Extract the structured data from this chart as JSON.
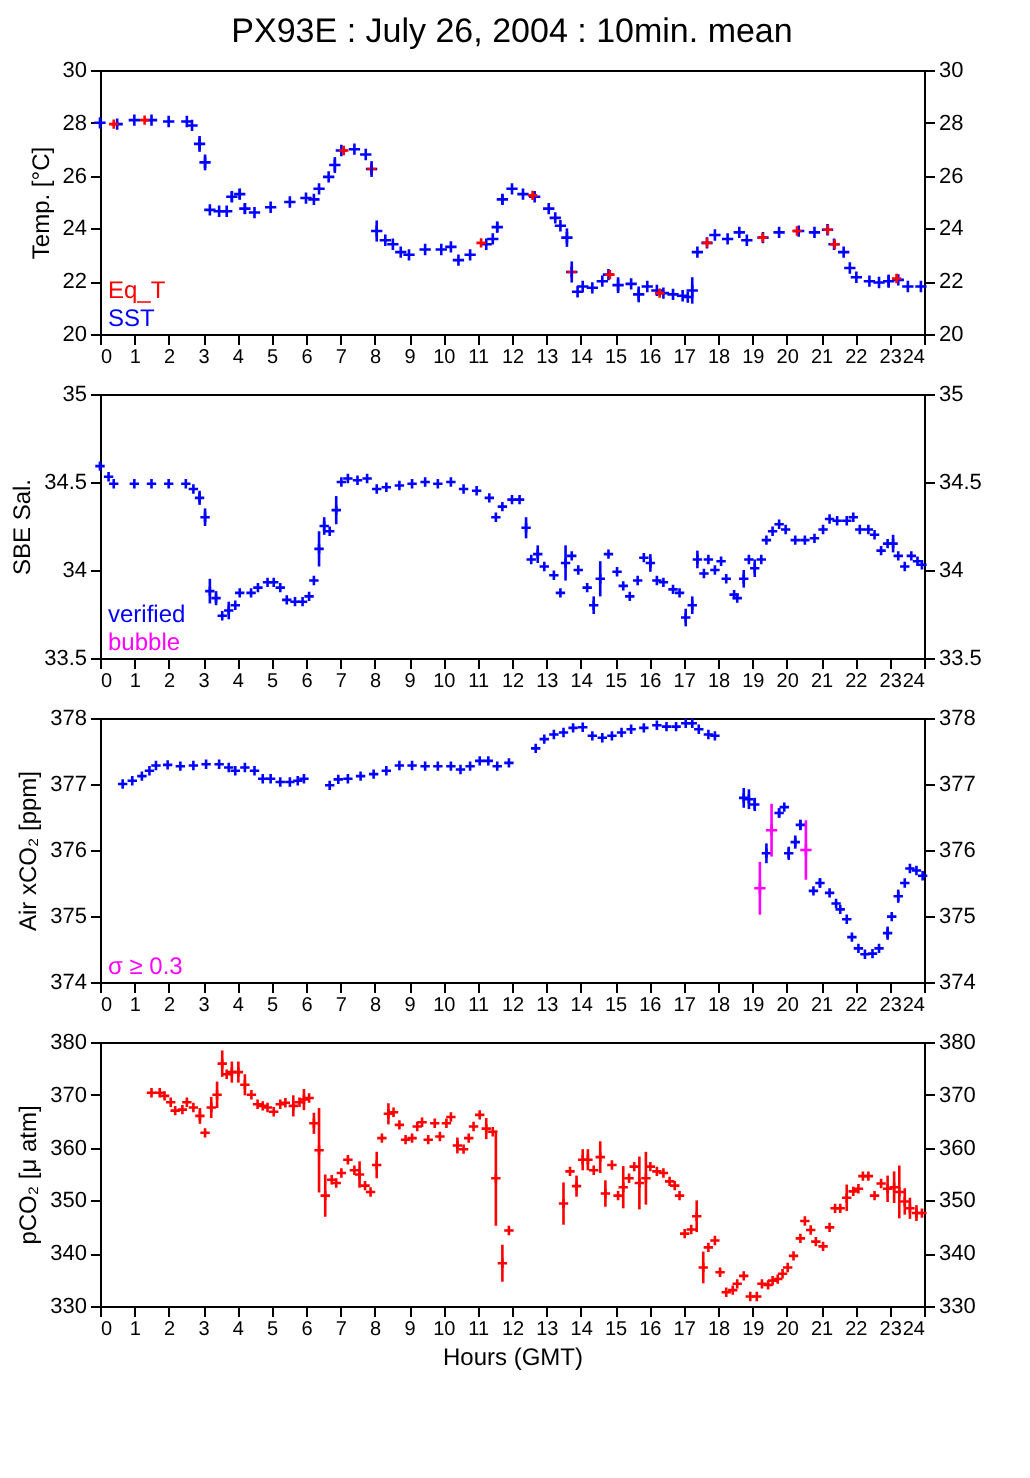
{
  "chart_data": [
    {
      "type": "scatter",
      "title": "PX93E : July 26, 2004 : 10min. mean",
      "ylabel": "Temp. [°C]",
      "xlim": [
        0,
        24
      ],
      "xticks": [
        0,
        1,
        2,
        3,
        4,
        5,
        6,
        7,
        8,
        9,
        10,
        11,
        12,
        13,
        14,
        15,
        16,
        17,
        18,
        19,
        20,
        21,
        22,
        23,
        24
      ],
      "ylim": [
        20,
        30
      ],
      "yticks": [
        20,
        22,
        24,
        26,
        28,
        30
      ],
      "y2lim": [
        20,
        30
      ],
      "y2ticks": [
        20,
        22,
        24,
        26,
        28,
        30
      ],
      "grid": false,
      "marker": "cross",
      "legend": "bottom left",
      "series": [
        {
          "name": "Eq_T",
          "color": "#ff0000",
          "x": [
            0.4,
            1.3,
            7.1,
            7.91,
            11.1,
            12.6,
            13.74,
            14.85,
            16.3,
            17.68,
            19.3,
            20.3,
            21.2,
            21.4,
            23.2
          ],
          "values": [
            27.95,
            28.1,
            26.95,
            26.25,
            23.45,
            25.25,
            22.35,
            22.25,
            21.55,
            23.45,
            23.65,
            23.9,
            23.95,
            23.4,
            22.1
          ],
          "errors": [
            null,
            null,
            null,
            null,
            null,
            null,
            null,
            null,
            null,
            null,
            null,
            null,
            null,
            null,
            null
          ]
        },
        {
          "name": "SST",
          "color": "#0000ff",
          "x": [
            0.0,
            0.5,
            1.0,
            1.5,
            2.0,
            2.53,
            2.68,
            2.9,
            3.06,
            3.2,
            3.47,
            3.69,
            3.84,
            4.07,
            4.22,
            4.5,
            4.97,
            5.53,
            6.0,
            6.23,
            6.38,
            6.66,
            6.84,
            7.03,
            7.41,
            7.74,
            7.91,
            8.06,
            8.31,
            8.53,
            8.76,
            9.0,
            9.47,
            9.94,
            10.22,
            10.44,
            10.78,
            11.25,
            11.44,
            11.57,
            11.72,
            12.0,
            12.32,
            12.66,
            13.07,
            13.26,
            13.41,
            13.6,
            13.74,
            13.91,
            14.06,
            14.34,
            14.63,
            14.81,
            15.09,
            15.47,
            15.69,
            15.94,
            16.22,
            16.41,
            16.69,
            16.97,
            17.12,
            17.25,
            17.4,
            17.68,
            17.91,
            18.28,
            18.62,
            18.84,
            19.31,
            19.78,
            20.35,
            20.81,
            21.19,
            21.38,
            21.66,
            21.84,
            22.03,
            22.41,
            22.69,
            22.97,
            23.25,
            23.53,
            23.91
          ],
          "values": [
            28.0,
            27.95,
            28.1,
            28.1,
            28.05,
            28.05,
            27.9,
            27.2,
            26.5,
            24.7,
            24.65,
            24.65,
            25.2,
            25.3,
            24.75,
            24.6,
            24.8,
            25.0,
            25.15,
            25.1,
            25.5,
            25.95,
            26.4,
            26.95,
            27.0,
            26.8,
            26.25,
            23.9,
            23.55,
            23.4,
            23.1,
            23.0,
            23.2,
            23.2,
            23.3,
            22.8,
            23.0,
            23.4,
            23.6,
            24.05,
            25.1,
            25.5,
            25.3,
            25.2,
            24.75,
            24.4,
            24.1,
            23.65,
            22.35,
            21.6,
            21.8,
            21.75,
            22.0,
            22.25,
            21.85,
            21.9,
            21.5,
            21.8,
            21.65,
            21.55,
            21.5,
            21.45,
            21.4,
            21.65,
            23.1,
            23.45,
            23.75,
            23.6,
            23.85,
            23.55,
            23.65,
            23.85,
            23.9,
            23.85,
            23.95,
            23.4,
            23.1,
            22.5,
            22.15,
            22.0,
            21.95,
            22.0,
            22.05,
            21.8,
            21.8
          ],
          "errors": [
            null,
            null,
            null,
            null,
            null,
            null,
            null,
            0.3,
            0.3,
            null,
            null,
            null,
            0.2,
            0.2,
            0.2,
            null,
            null,
            null,
            null,
            null,
            null,
            null,
            0.3,
            null,
            null,
            null,
            0.3,
            0.4,
            null,
            null,
            null,
            null,
            null,
            null,
            null,
            null,
            null,
            null,
            null,
            0.2,
            0.2,
            null,
            null,
            null,
            null,
            null,
            null,
            0.35,
            0.4,
            null,
            null,
            null,
            null,
            null,
            0.3,
            null,
            0.3,
            null,
            null,
            null,
            null,
            null,
            null,
            0.5,
            null,
            null,
            null,
            null,
            null,
            null,
            null,
            null,
            null,
            null,
            null,
            null,
            null,
            null,
            null,
            null,
            null,
            0.25,
            null,
            null,
            null
          ]
        }
      ]
    },
    {
      "type": "scatter",
      "ylabel": "SBE Sal.",
      "xlim": [
        0,
        24
      ],
      "xticks": [
        0,
        1,
        2,
        3,
        4,
        5,
        6,
        7,
        8,
        9,
        10,
        11,
        12,
        13,
        14,
        15,
        16,
        17,
        18,
        19,
        20,
        21,
        22,
        23,
        24
      ],
      "ylim": [
        33.5,
        35
      ],
      "yticks": [
        33.5,
        34,
        34.5,
        35
      ],
      "y2lim": [
        33.5,
        35
      ],
      "y2ticks": [
        33.5,
        34,
        34.5,
        35
      ],
      "grid": false,
      "marker": "cross",
      "legend": "bottom left",
      "series": [
        {
          "name": "verified",
          "color": "#0000ff",
          "x": [
            0.0,
            0.25,
            0.4,
            1.0,
            1.5,
            2.0,
            2.5,
            2.72,
            2.9,
            3.06,
            3.2,
            3.38,
            3.56,
            3.75,
            3.94,
            4.07,
            4.4,
            4.6,
            4.88,
            5.06,
            5.25,
            5.44,
            5.68,
            5.9,
            6.09,
            6.23,
            6.38,
            6.53,
            6.69,
            6.88,
            7.03,
            7.22,
            7.5,
            7.78,
            8.06,
            8.34,
            8.72,
            9.09,
            9.47,
            9.84,
            10.22,
            10.59,
            10.97,
            11.34,
            11.53,
            11.72,
            12.0,
            12.22,
            12.41,
            12.56,
            12.75,
            12.94,
            13.22,
            13.41,
            13.56,
            13.74,
            13.93,
            14.19,
            14.38,
            14.57,
            14.81,
            15.06,
            15.24,
            15.43,
            15.66,
            15.84,
            16.03,
            16.22,
            16.41,
            16.69,
            16.88,
            17.06,
            17.25,
            17.4,
            17.59,
            17.72,
            17.91,
            18.09,
            18.24,
            18.47,
            18.56,
            18.75,
            18.9,
            19.07,
            19.26,
            19.41,
            19.59,
            19.78,
            19.97,
            20.25,
            20.53,
            20.81,
            21.06,
            21.25,
            21.47,
            21.75,
            21.94,
            22.13,
            22.38,
            22.56,
            22.75,
            22.94,
            23.1,
            23.25,
            23.44,
            23.63,
            23.81,
            23.94
          ],
          "values": [
            34.59,
            34.53,
            34.49,
            34.49,
            34.49,
            34.49,
            34.49,
            34.46,
            34.41,
            34.3,
            33.88,
            33.84,
            33.74,
            33.77,
            33.8,
            33.87,
            33.87,
            33.9,
            33.93,
            33.93,
            33.9,
            33.83,
            33.82,
            33.82,
            33.85,
            33.94,
            34.12,
            34.25,
            34.22,
            34.34,
            34.5,
            34.52,
            34.51,
            34.52,
            34.46,
            34.47,
            34.48,
            34.49,
            34.5,
            34.49,
            34.5,
            34.46,
            34.45,
            34.41,
            34.3,
            34.36,
            34.4,
            34.4,
            34.24,
            34.06,
            34.09,
            34.02,
            33.97,
            33.87,
            34.04,
            34.08,
            34.0,
            33.9,
            33.8,
            33.95,
            34.09,
            33.99,
            33.91,
            33.85,
            33.94,
            34.07,
            34.04,
            33.94,
            33.93,
            33.89,
            33.87,
            33.73,
            33.8,
            34.06,
            33.98,
            34.06,
            34.0,
            34.05,
            33.95,
            33.86,
            33.84,
            33.95,
            34.06,
            34.01,
            34.06,
            34.17,
            34.22,
            34.26,
            34.23,
            34.17,
            34.17,
            34.18,
            34.23,
            34.29,
            34.28,
            34.28,
            34.3,
            34.23,
            34.23,
            34.2,
            34.11,
            34.15,
            34.15,
            34.08,
            34.02,
            34.08,
            34.05,
            34.03
          ],
          "errors": [
            null,
            null,
            null,
            null,
            null,
            null,
            null,
            null,
            0.04,
            0.05,
            0.07,
            0.04,
            null,
            0.05,
            null,
            null,
            null,
            null,
            null,
            null,
            null,
            null,
            null,
            null,
            null,
            null,
            0.1,
            0.05,
            null,
            0.08,
            null,
            null,
            null,
            null,
            null,
            null,
            null,
            null,
            null,
            null,
            null,
            null,
            null,
            null,
            null,
            null,
            null,
            null,
            0.06,
            null,
            0.05,
            null,
            null,
            null,
            0.1,
            null,
            null,
            null,
            0.05,
            0.1,
            null,
            null,
            null,
            null,
            null,
            null,
            0.05,
            null,
            null,
            null,
            null,
            0.05,
            0.05,
            0.05,
            null,
            null,
            null,
            null,
            null,
            null,
            null,
            0.05,
            null,
            0.05,
            null,
            null,
            null,
            null,
            null,
            null,
            null,
            null,
            null,
            null,
            null,
            null,
            null,
            null,
            null,
            null,
            null,
            null,
            0.05,
            null,
            null,
            null,
            null,
            null
          ]
        },
        {
          "name": "bubble",
          "color": "#ff00ff"
        }
      ]
    },
    {
      "type": "scatter",
      "ylabel": "Air xCO₂ [ppm]",
      "xlim": [
        0,
        24
      ],
      "xticks": [
        0,
        1,
        2,
        3,
        4,
        5,
        6,
        7,
        8,
        9,
        10,
        11,
        12,
        13,
        14,
        15,
        16,
        17,
        18,
        19,
        20,
        21,
        22,
        23,
        24
      ],
      "ylim": [
        374,
        378
      ],
      "yticks": [
        374,
        375,
        376,
        377,
        378
      ],
      "y2lim": [
        374,
        378
      ],
      "y2ticks": [
        374,
        375,
        376,
        377,
        378
      ],
      "grid": false,
      "marker": "cross",
      "legend": "bottom left",
      "series": [
        {
          "color": "#0000ff",
          "x": [
            0.66,
            0.94,
            1.22,
            1.44,
            1.63,
            1.97,
            2.34,
            2.72,
            3.09,
            3.47,
            3.75,
            3.94,
            4.22,
            4.5,
            4.74,
            4.97,
            5.25,
            5.53,
            5.76,
            5.94,
            6.69,
            6.94,
            7.22,
            7.59,
            7.97,
            8.34,
            8.72,
            9.09,
            9.47,
            9.84,
            10.22,
            10.5,
            10.78,
            11.06,
            11.31,
            11.57,
            11.91,
            12.69,
            12.94,
            13.22,
            13.5,
            13.78,
            14.06,
            14.34,
            14.63,
            14.91,
            15.19,
            15.47,
            15.84,
            16.22,
            16.5,
            16.78,
            17.06,
            17.25,
            17.44,
            17.72,
            17.91,
            18.75,
            18.9,
            19.07,
            19.41,
            19.78,
            19.93,
            20.06,
            20.25,
            20.4,
            20.78,
            20.97,
            21.25,
            21.44,
            21.56,
            21.75,
            21.9,
            22.09,
            22.28,
            22.5,
            22.69,
            22.94,
            23.06,
            23.25,
            23.44,
            23.59,
            23.78,
            23.96
          ],
          "values": [
            377.0,
            377.05,
            377.12,
            377.2,
            377.28,
            377.29,
            377.27,
            377.28,
            377.3,
            377.3,
            377.25,
            377.2,
            377.25,
            377.2,
            377.08,
            377.08,
            377.03,
            377.03,
            377.05,
            377.08,
            376.98,
            377.07,
            377.08,
            377.12,
            377.15,
            377.2,
            377.28,
            377.28,
            377.27,
            377.27,
            377.27,
            377.22,
            377.27,
            377.35,
            377.35,
            377.27,
            377.32,
            377.54,
            377.68,
            377.75,
            377.78,
            377.85,
            377.86,
            377.73,
            377.7,
            377.73,
            377.78,
            377.83,
            377.85,
            377.89,
            377.87,
            377.87,
            377.92,
            377.92,
            377.83,
            377.75,
            377.73,
            376.79,
            376.77,
            376.69,
            375.95,
            376.56,
            376.65,
            375.95,
            376.12,
            376.38,
            375.38,
            375.5,
            375.35,
            375.19,
            375.1,
            374.95,
            374.68,
            374.51,
            374.42,
            374.43,
            374.51,
            374.74,
            374.99,
            375.3,
            375.5,
            375.72,
            375.69,
            375.61
          ],
          "errors": [
            null,
            null,
            null,
            null,
            null,
            null,
            null,
            null,
            null,
            null,
            null,
            null,
            null,
            null,
            null,
            null,
            null,
            null,
            null,
            null,
            null,
            null,
            null,
            null,
            null,
            null,
            null,
            null,
            null,
            null,
            null,
            null,
            null,
            null,
            null,
            null,
            null,
            null,
            null,
            null,
            null,
            null,
            null,
            null,
            null,
            null,
            null,
            null,
            null,
            null,
            null,
            null,
            null,
            null,
            null,
            null,
            null,
            0.15,
            0.15,
            0.1,
            0.15,
            0.07,
            null,
            0.1,
            0.1,
            0.08,
            null,
            0.07,
            null,
            null,
            null,
            null,
            null,
            null,
            null,
            null,
            null,
            0.1,
            null,
            0.1,
            null,
            null,
            null,
            null
          ]
        },
        {
          "name": "σ ≥ 0.3",
          "color": "#ff00ff",
          "x": [
            19.22,
            19.56,
            20.56
          ],
          "values": [
            375.42,
            376.3,
            376.0
          ],
          "errors": [
            0.4,
            0.4,
            0.45
          ]
        }
      ]
    },
    {
      "type": "scatter",
      "xlabel": "Hours (GMT)",
      "ylabel": "pCO₂ [μ atm]",
      "xlim": [
        0,
        24
      ],
      "xticks": [
        0,
        1,
        2,
        3,
        4,
        5,
        6,
        7,
        8,
        9,
        10,
        11,
        12,
        13,
        14,
        15,
        16,
        17,
        18,
        19,
        20,
        21,
        22,
        23,
        24
      ],
      "ylim": [
        330,
        380
      ],
      "yticks": [
        330,
        340,
        350,
        360,
        370,
        380
      ],
      "y2lim": [
        330,
        380
      ],
      "y2ticks": [
        330,
        340,
        350,
        360,
        370,
        380
      ],
      "grid": false,
      "marker": "cross",
      "series": [
        {
          "color": "#ff0000",
          "x": [
            1.5,
            1.74,
            1.88,
            2.06,
            2.19,
            2.4,
            2.53,
            2.72,
            2.91,
            3.06,
            3.24,
            3.41,
            3.56,
            3.69,
            3.84,
            4.03,
            4.22,
            4.41,
            4.59,
            4.74,
            4.88,
            5.06,
            5.25,
            5.4,
            5.63,
            5.81,
            5.94,
            6.09,
            6.23,
            6.38,
            6.56,
            6.75,
            6.88,
            7.03,
            7.22,
            7.41,
            7.56,
            7.72,
            7.88,
            8.06,
            8.21,
            8.4,
            8.55,
            8.72,
            8.9,
            9.09,
            9.24,
            9.38,
            9.56,
            9.75,
            9.9,
            10.09,
            10.22,
            10.41,
            10.59,
            10.74,
            10.88,
            11.06,
            11.25,
            11.44,
            11.53,
            11.72,
            11.91,
            13.5,
            13.69,
            13.88,
            14.06,
            14.21,
            14.38,
            14.57,
            14.72,
            14.91,
            15.09,
            15.24,
            15.41,
            15.56,
            15.71,
            15.9,
            16.03,
            16.22,
            16.41,
            16.59,
            16.74,
            16.88,
            17.03,
            17.22,
            17.38,
            17.57,
            17.72,
            17.91,
            18.06,
            18.24,
            18.43,
            18.56,
            18.75,
            18.94,
            19.13,
            19.28,
            19.46,
            19.59,
            19.74,
            19.88,
            20.03,
            20.2,
            20.4,
            20.53,
            20.7,
            20.85,
            21.06,
            21.25,
            21.41,
            21.56,
            21.75,
            21.94,
            22.09,
            22.22,
            22.38,
            22.56,
            22.75,
            22.94,
            23.13,
            23.28,
            23.44,
            23.59,
            23.78,
            23.94
          ],
          "values": [
            370.4,
            370.4,
            369.8,
            368.6,
            367.0,
            367.2,
            368.6,
            367.6,
            366.0,
            362.8,
            367.6,
            370.0,
            375.9,
            373.9,
            374.3,
            374.3,
            371.9,
            370.0,
            368.2,
            367.9,
            367.6,
            366.8,
            368.2,
            368.5,
            367.9,
            368.6,
            369.1,
            369.4,
            364.6,
            359.5,
            350.9,
            353.9,
            353.3,
            355.2,
            357.7,
            355.7,
            354.9,
            352.8,
            351.6,
            356.7,
            361.8,
            366.4,
            366.7,
            364.3,
            361.5,
            361.8,
            364.0,
            364.8,
            361.5,
            364.6,
            362.1,
            364.6,
            365.8,
            360.4,
            359.7,
            361.8,
            364.0,
            366.2,
            363.6,
            363.0,
            354.2,
            338.1,
            344.3,
            349.4,
            355.5,
            352.7,
            357.7,
            357.7,
            355.7,
            358.2,
            351.3,
            356.7,
            350.9,
            352.5,
            354.2,
            356.4,
            353.3,
            354.2,
            356.4,
            355.5,
            355.2,
            353.6,
            352.8,
            350.9,
            343.7,
            344.5,
            347.0,
            337.3,
            341.1,
            342.4,
            336.4,
            332.6,
            333.0,
            334.2,
            335.7,
            331.8,
            331.8,
            334.2,
            334.0,
            334.8,
            335.1,
            336.1,
            337.3,
            339.5,
            342.8,
            346.1,
            344.4,
            342.2,
            341.3,
            344.9,
            348.5,
            348.5,
            350.5,
            351.7,
            352.2,
            354.6,
            354.6,
            350.9,
            353.2,
            352.2,
            352.5,
            351.6,
            349.8,
            348.5,
            347.6,
            347.6
          ],
          "errors": [
            null,
            null,
            null,
            null,
            null,
            null,
            null,
            null,
            1.5,
            null,
            2,
            2.5,
            2.5,
            null,
            2,
            2,
            2,
            null,
            null,
            null,
            null,
            null,
            null,
            null,
            2,
            null,
            2,
            null,
            2,
            8,
            4,
            null,
            null,
            null,
            null,
            null,
            2.5,
            null,
            null,
            2.5,
            null,
            2,
            null,
            null,
            null,
            null,
            null,
            null,
            null,
            null,
            null,
            null,
            null,
            1.5,
            null,
            null,
            null,
            null,
            2,
            null,
            9,
            3.5,
            null,
            4,
            null,
            2,
            2,
            2,
            null,
            3,
            2.5,
            null,
            null,
            4,
            null,
            null,
            5,
            5,
            null,
            null,
            null,
            null,
            null,
            null,
            null,
            null,
            3,
            3,
            null,
            null,
            null,
            null,
            null,
            null,
            null,
            null,
            null,
            null,
            null,
            null,
            null,
            null,
            null,
            null,
            null,
            null,
            null,
            null,
            null,
            null,
            null,
            null,
            2.5,
            null,
            null,
            null,
            null,
            null,
            null,
            2.5,
            3,
            5,
            2.5,
            2,
            1.5,
            null
          ]
        }
      ]
    }
  ]
}
